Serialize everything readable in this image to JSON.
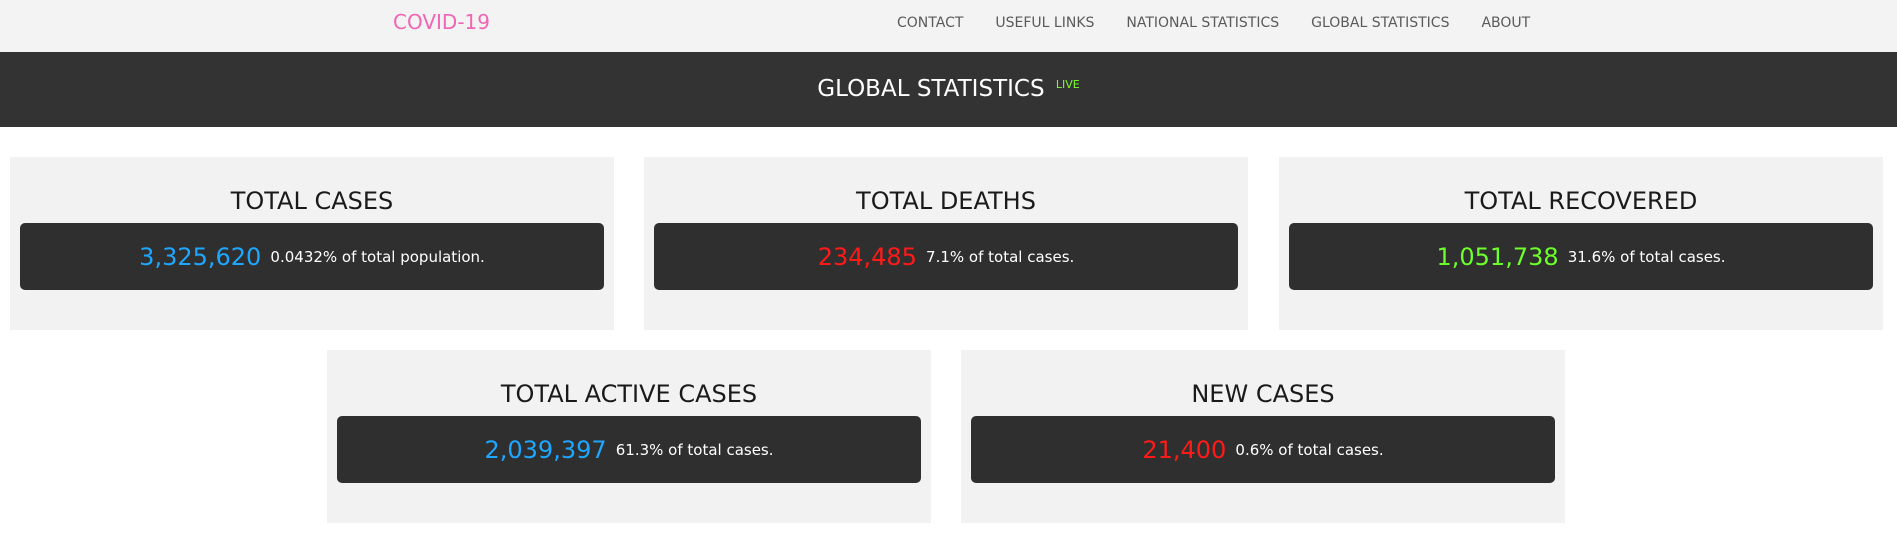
{
  "nav": {
    "brand": "COVID-19",
    "links": [
      "CONTACT",
      "USEFUL LINKS",
      "NATIONAL STATISTICS",
      "GLOBAL STATISTICS",
      "ABOUT"
    ]
  },
  "hero": {
    "title": "GLOBAL STATISTICS",
    "badge": "LIVE"
  },
  "cards": [
    {
      "title": "TOTAL CASES",
      "value": "3,325,620",
      "note": "0.0432% of total population.",
      "color": "#1ea7ff"
    },
    {
      "title": "TOTAL DEATHS",
      "value": "234,485",
      "note": "7.1% of total cases.",
      "color": "#ff1a1a"
    },
    {
      "title": "TOTAL RECOVERED",
      "value": "1,051,738",
      "note": "31.6% of total cases.",
      "color": "#6cff2a"
    },
    {
      "title": "TOTAL ACTIVE CASES",
      "value": "2,039,397",
      "note": "61.3% of total cases.",
      "color": "#1ea7ff"
    },
    {
      "title": "NEW CASES",
      "value": "21,400",
      "note": "0.6% of total cases.",
      "color": "#ff1a1a"
    }
  ],
  "theme": {
    "brand": "#ef66b4",
    "navbar_bg": "#f3f3f3",
    "hero_bg": "#333333",
    "card_bg": "#f2f2f2",
    "panel_bg": "#2f2f2f",
    "live": "#7cff2f"
  }
}
